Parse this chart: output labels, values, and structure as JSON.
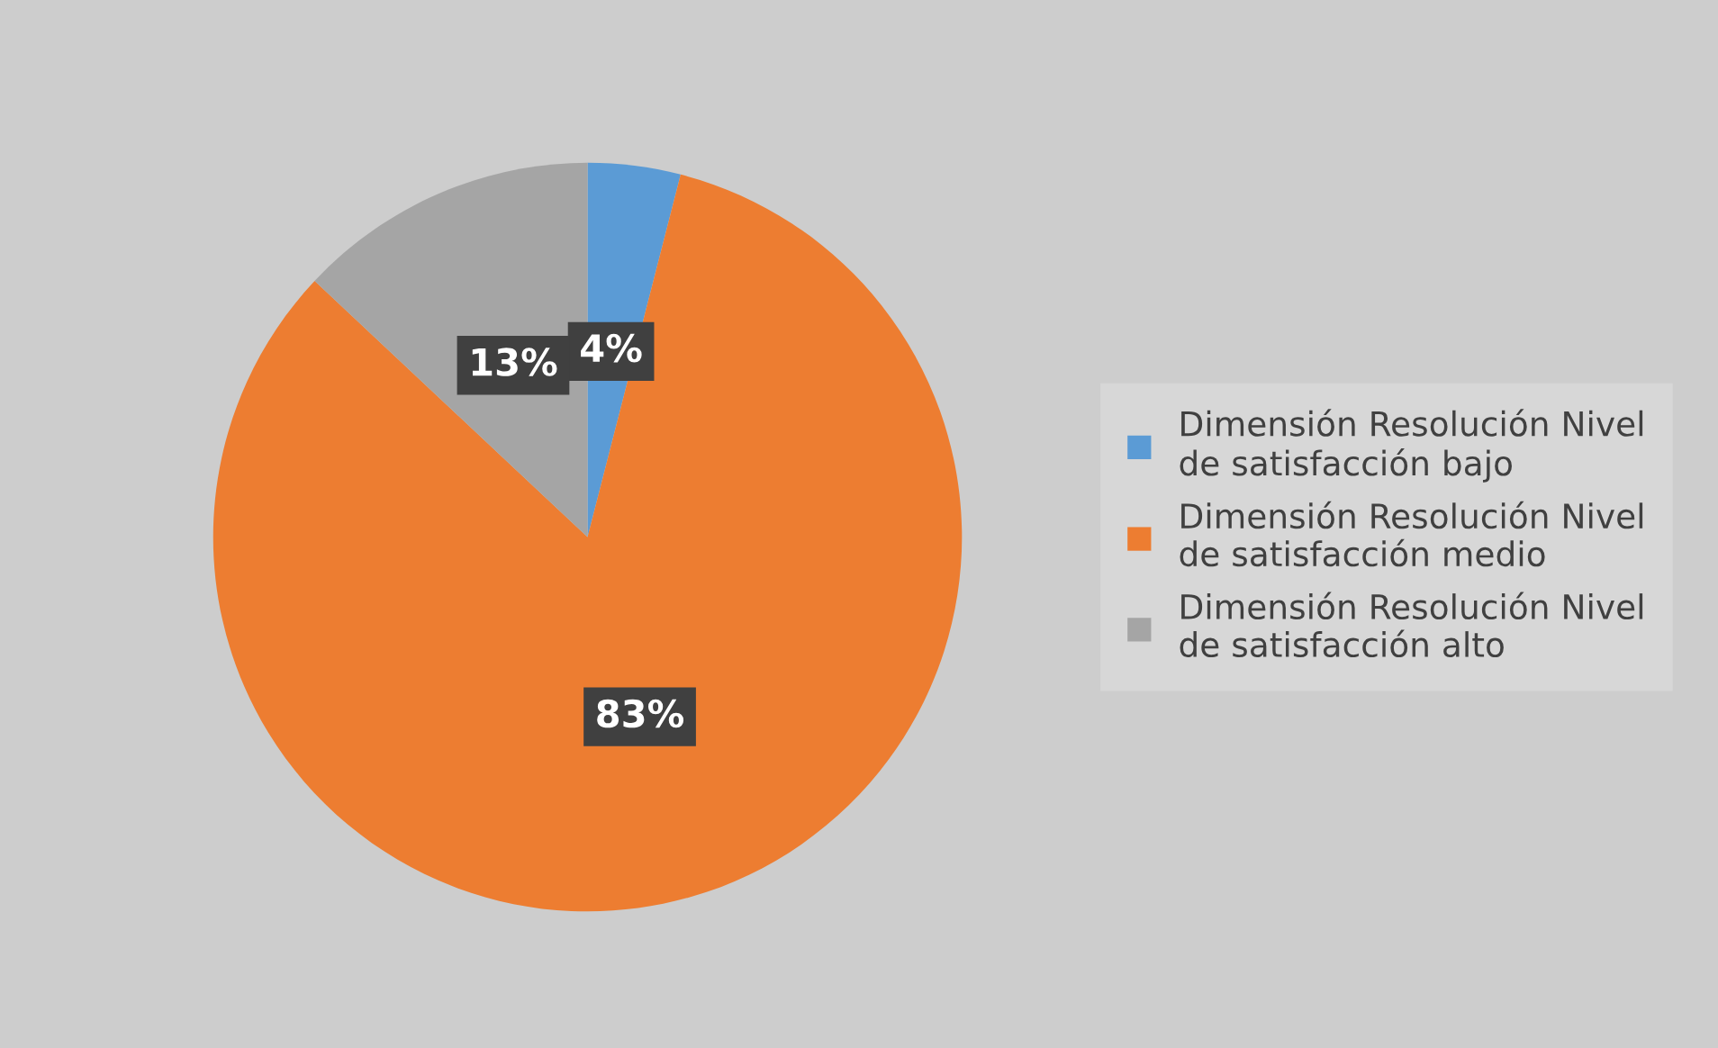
{
  "chart_data": {
    "type": "pie",
    "categories": [
      "Dimensión Resolución Nivel de satisfacción bajo",
      "Dimensión Resolución Nivel de satisfacción medio",
      "Dimensión Resolución Nivel de satisfacción alto"
    ],
    "values": [
      4,
      83,
      13
    ],
    "colors": [
      "#5b9bd5",
      "#ed7d31",
      "#a5a5a5"
    ],
    "value_labels": [
      "4%",
      "83%",
      "13%"
    ],
    "legend": "right"
  }
}
